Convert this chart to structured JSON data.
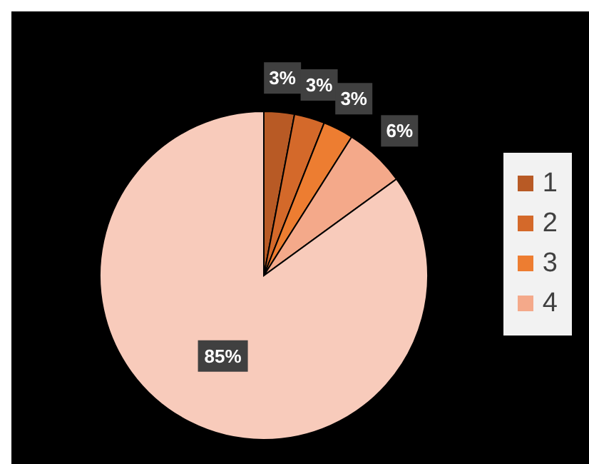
{
  "chart_data": {
    "type": "pie",
    "categories": [
      "1",
      "2",
      "3",
      "4",
      null
    ],
    "values": [
      3,
      3,
      3,
      6,
      85
    ],
    "value_labels": [
      "3%",
      "3%",
      "3%",
      "6%",
      "85%"
    ],
    "colors": [
      "#b85a25",
      "#d4692a",
      "#ed7d31",
      "#f4a98a",
      "#f8cbbb"
    ],
    "legend": "right"
  }
}
